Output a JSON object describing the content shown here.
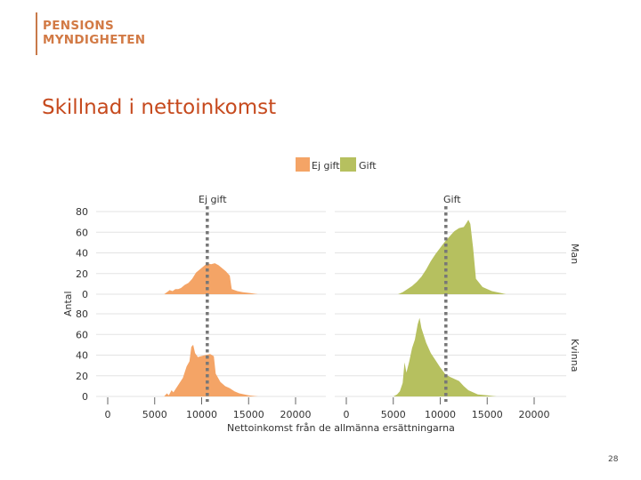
{
  "logo": {
    "line1": "PENSIONS",
    "line2": "MYNDIGHETEN"
  },
  "slide": {
    "title": "Skillnad i nettoinkomst",
    "page_number": "28"
  },
  "colors": {
    "ej_gift": "#f4a466",
    "gift": "#b6c05f",
    "reference_line": "#777777",
    "grid": "#e3e3e3",
    "title": "#c64a1e"
  },
  "chart_data": {
    "type": "area",
    "legend": {
      "placement": "top-center",
      "entries": [
        {
          "name": "Ej gift",
          "color": "#f4a466"
        },
        {
          "name": "Gift",
          "color": "#b6c05f"
        }
      ]
    },
    "xlabel": "Nettoinkomst från de allmänna ersättningarna",
    "ylabel": "Antal",
    "columns": [
      "Ej gift",
      "Gift"
    ],
    "rows": [
      "Man",
      "Kvinna"
    ],
    "xlim": [
      0,
      22000
    ],
    "ylim": [
      0,
      80
    ],
    "x_ticks": [
      "0",
      "5000",
      "10000",
      "15000",
      "20000"
    ],
    "y_ticks": [
      "0",
      "20",
      "40",
      "60",
      "80"
    ],
    "grid": true,
    "reference_line_x": 10600,
    "panels": [
      {
        "column": "Ej gift",
        "row": "Man",
        "color": "#f4a466",
        "points": [
          [
            6000,
            0
          ],
          [
            6300,
            2
          ],
          [
            6600,
            4
          ],
          [
            6900,
            3
          ],
          [
            7200,
            5
          ],
          [
            7500,
            5
          ],
          [
            7800,
            6
          ],
          [
            8200,
            9
          ],
          [
            8600,
            11
          ],
          [
            9000,
            15
          ],
          [
            9400,
            21
          ],
          [
            9800,
            24
          ],
          [
            10200,
            27
          ],
          [
            10600,
            30
          ],
          [
            11000,
            29
          ],
          [
            11400,
            30
          ],
          [
            11800,
            28
          ],
          [
            12200,
            25
          ],
          [
            12600,
            22
          ],
          [
            13000,
            18
          ],
          [
            13200,
            5
          ],
          [
            13800,
            3
          ],
          [
            14400,
            2
          ],
          [
            15200,
            1
          ],
          [
            16000,
            0
          ]
        ]
      },
      {
        "column": "Gift",
        "row": "Man",
        "color": "#b6c05f",
        "points": [
          [
            5500,
            0
          ],
          [
            6000,
            2
          ],
          [
            6500,
            5
          ],
          [
            7000,
            8
          ],
          [
            7500,
            12
          ],
          [
            8000,
            17
          ],
          [
            8500,
            24
          ],
          [
            9000,
            32
          ],
          [
            9500,
            39
          ],
          [
            10000,
            45
          ],
          [
            10500,
            51
          ],
          [
            11000,
            56
          ],
          [
            11500,
            61
          ],
          [
            12000,
            64
          ],
          [
            12500,
            65
          ],
          [
            12800,
            69
          ],
          [
            13000,
            72
          ],
          [
            13200,
            68
          ],
          [
            13500,
            45
          ],
          [
            13800,
            15
          ],
          [
            14500,
            7
          ],
          [
            15500,
            3
          ],
          [
            16500,
            1
          ],
          [
            17000,
            0
          ]
        ]
      },
      {
        "column": "Ej gift",
        "row": "Kvinna",
        "color": "#f4a466",
        "points": [
          [
            6000,
            0
          ],
          [
            6300,
            3
          ],
          [
            6500,
            1
          ],
          [
            6800,
            6
          ],
          [
            7000,
            4
          ],
          [
            7500,
            11
          ],
          [
            8000,
            18
          ],
          [
            8400,
            29
          ],
          [
            8700,
            34
          ],
          [
            8900,
            48
          ],
          [
            9100,
            50
          ],
          [
            9300,
            42
          ],
          [
            9600,
            38
          ],
          [
            9900,
            39
          ],
          [
            10400,
            40
          ],
          [
            10900,
            41
          ],
          [
            11300,
            39
          ],
          [
            11500,
            22
          ],
          [
            12000,
            14
          ],
          [
            12500,
            10
          ],
          [
            13000,
            8
          ],
          [
            13500,
            5
          ],
          [
            14000,
            3
          ],
          [
            15000,
            1
          ],
          [
            16000,
            0
          ]
        ]
      },
      {
        "column": "Gift",
        "row": "Kvinna",
        "color": "#b6c05f",
        "points": [
          [
            5000,
            0
          ],
          [
            5400,
            2
          ],
          [
            5700,
            5
          ],
          [
            6000,
            13
          ],
          [
            6200,
            33
          ],
          [
            6400,
            23
          ],
          [
            6700,
            34
          ],
          [
            7000,
            47
          ],
          [
            7300,
            55
          ],
          [
            7600,
            70
          ],
          [
            7800,
            76
          ],
          [
            8000,
            66
          ],
          [
            8500,
            52
          ],
          [
            9000,
            42
          ],
          [
            9500,
            35
          ],
          [
            10000,
            28
          ],
          [
            10500,
            22
          ],
          [
            11000,
            19
          ],
          [
            11500,
            17
          ],
          [
            12000,
            15
          ],
          [
            12500,
            10
          ],
          [
            13000,
            6
          ],
          [
            14000,
            2
          ],
          [
            15000,
            1
          ],
          [
            16000,
            0
          ]
        ]
      }
    ]
  }
}
